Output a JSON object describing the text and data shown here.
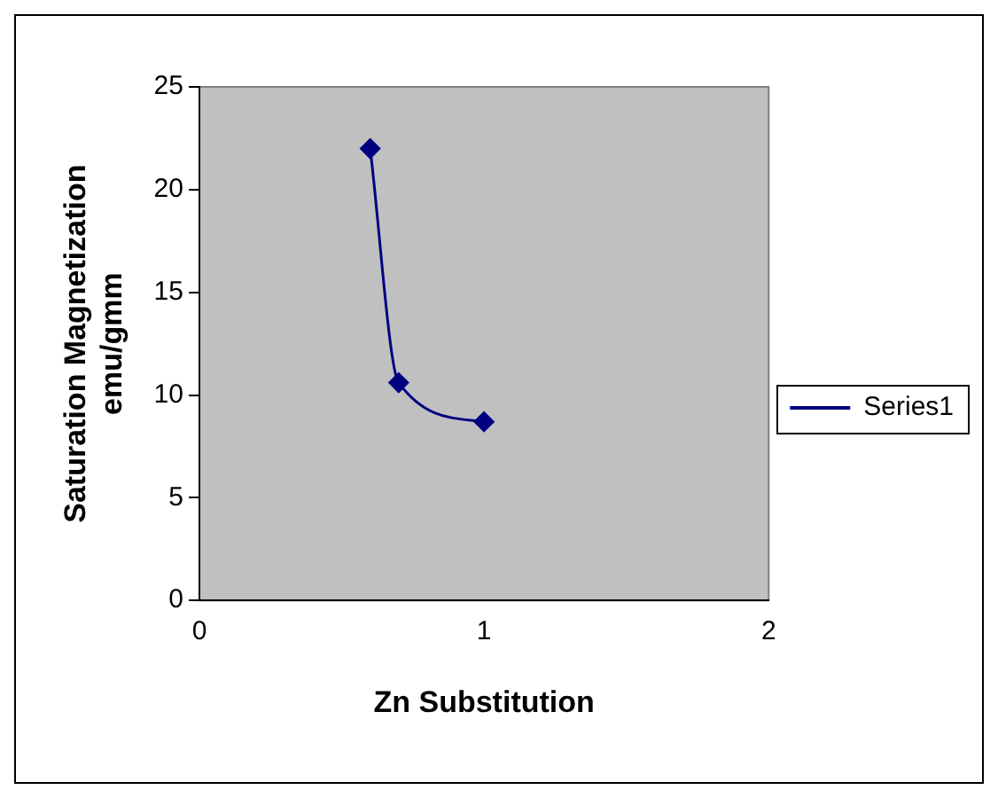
{
  "chart_data": {
    "type": "line",
    "xlabel": "Zn Substitution",
    "ylabel": "Saturation Magnetization\nemu/gmm",
    "x": [
      0.6,
      0.7,
      1.0
    ],
    "series": [
      {
        "name": "Series1",
        "color": "#000080",
        "values": [
          22,
          10.6,
          8.7
        ]
      }
    ],
    "xlim": [
      0,
      2
    ],
    "xticks": [
      0,
      1,
      2
    ],
    "ylim": [
      0,
      25
    ],
    "yticks": [
      0,
      5,
      10,
      15,
      20,
      25
    ],
    "grid": false,
    "legend": "right",
    "marker": "diamond",
    "line_style": "solid"
  }
}
